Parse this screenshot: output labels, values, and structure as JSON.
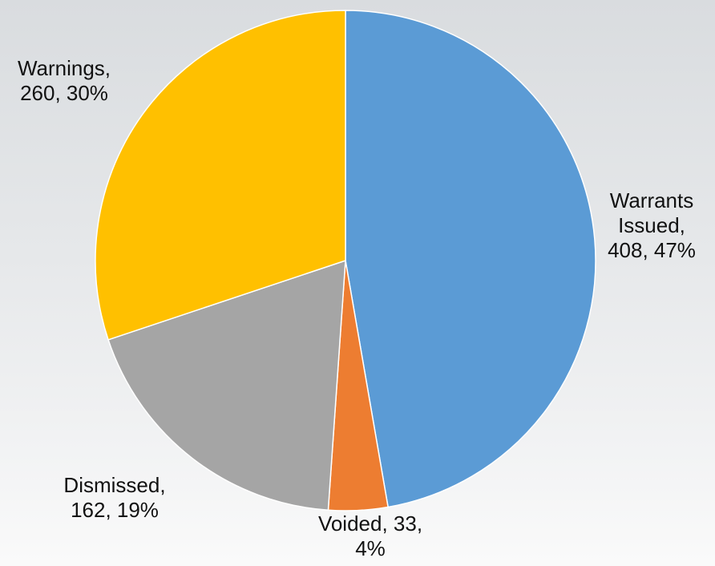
{
  "chart_data": {
    "type": "pie",
    "values": [
      408,
      33,
      162,
      260
    ],
    "value_labels": [
      "Warrants Issued, 408, 47%",
      "Voided, 33, 4%",
      "Dismissed, 162, 19%",
      "Warnings, 260, 30%"
    ],
    "colors": [
      "#5b9bd5",
      "#ed7d31",
      "#a5a5a5",
      "#ffc000"
    ]
  }
}
